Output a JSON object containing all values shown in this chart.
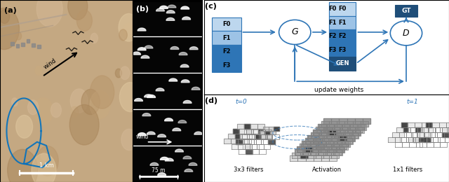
{
  "fig_width": 6.4,
  "fig_height": 2.6,
  "dpi": 100,
  "panel_labels": [
    "(a)",
    "(b)",
    "(c)",
    "(d)"
  ],
  "panel_label_fontsize": 8,
  "panel_c_title": "update weights",
  "panel_d_labels": [
    "3x3 filters",
    "Activation",
    "1x1 filters"
  ],
  "panel_d_t0": "t=0",
  "panel_d_t1": "t=1",
  "blue_dark": "#1F4E79",
  "blue_mid": "#2E75B6",
  "blue_light": "#9DC3E6",
  "blue_lighter": "#BDD7EE",
  "arrow_color": "#2E75B6",
  "text_color": "#000000",
  "circle_edge": "#2E75B6",
  "gt_color": "#1F4E79",
  "gen_color": "#1F4E79",
  "wind_arrow_color": "#000000",
  "scale_bar_color": "#FFFFFF",
  "wind_label": "wind",
  "scale_75m": "75 m",
  "scale_1km": "1 km",
  "wind_label_b": "wind"
}
